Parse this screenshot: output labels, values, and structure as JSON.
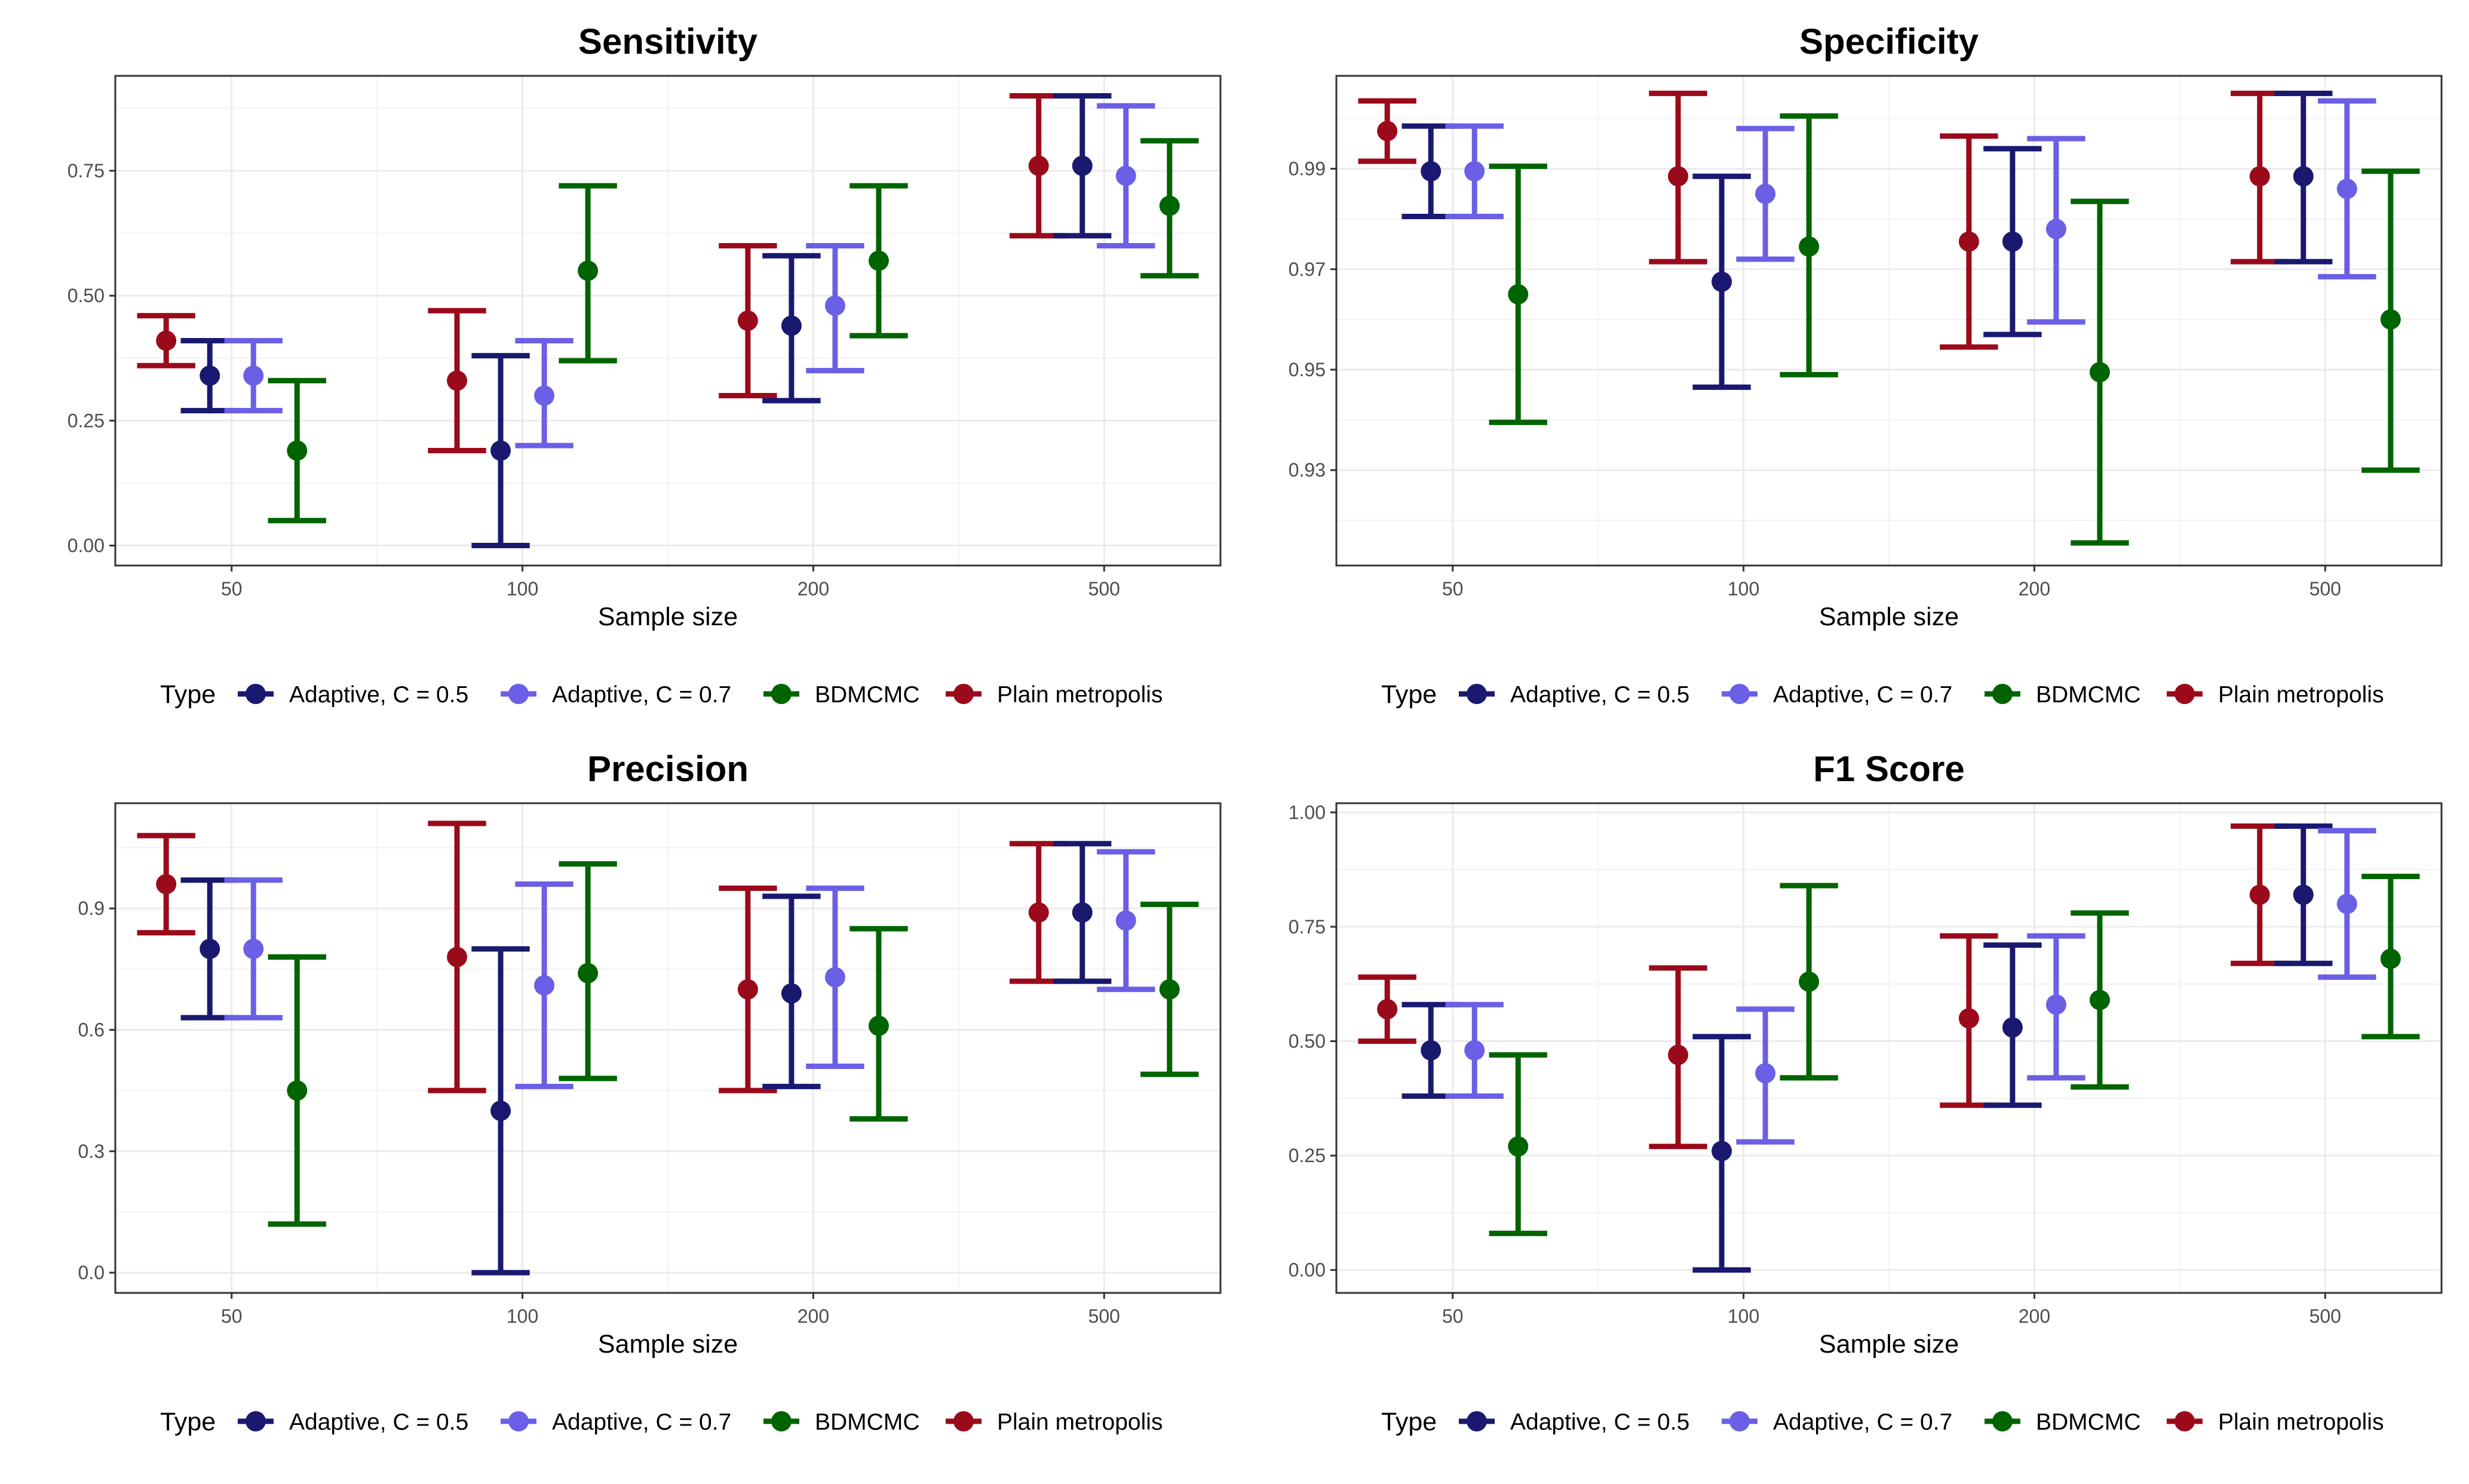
{
  "colors": {
    "Adaptive, C = 0.5": "#191970",
    "Adaptive, C = 0.7": "#6b5fe6",
    "BDMCMC": "#006400",
    "Plain metropolis": "#9b0a1a"
  },
  "legend": {
    "title": "Type",
    "entries": [
      "Adaptive, C = 0.5",
      "Adaptive, C = 0.7",
      "BDMCMC",
      "Plain metropolis"
    ]
  },
  "chart_data": [
    {
      "type": "errorbar",
      "title": "Sensitivity",
      "xlabel": "Sample size",
      "ylabel": "",
      "categories": [
        "50",
        "100",
        "200",
        "500"
      ],
      "ylim": [
        -0.04,
        0.94
      ],
      "yticks": [
        0.0,
        0.25,
        0.5,
        0.75
      ],
      "ytick_labels": [
        "0.00",
        "0.25",
        "0.50",
        "0.75"
      ],
      "legend_position": "bottom",
      "grid": true,
      "series": [
        {
          "name": "Plain metropolis",
          "mean": [
            0.41,
            0.33,
            0.45,
            0.76
          ],
          "lower": [
            0.36,
            0.19,
            0.3,
            0.62
          ],
          "upper": [
            0.46,
            0.47,
            0.6,
            0.9
          ]
        },
        {
          "name": "Adaptive, C = 0.5",
          "mean": [
            0.34,
            0.19,
            0.44,
            0.76
          ],
          "lower": [
            0.27,
            0.0,
            0.29,
            0.62
          ],
          "upper": [
            0.41,
            0.38,
            0.58,
            0.9
          ]
        },
        {
          "name": "Adaptive, C = 0.7",
          "mean": [
            0.34,
            0.3,
            0.48,
            0.74
          ],
          "lower": [
            0.27,
            0.2,
            0.35,
            0.6
          ],
          "upper": [
            0.41,
            0.41,
            0.6,
            0.88
          ]
        },
        {
          "name": "BDMCMC",
          "mean": [
            0.19,
            0.55,
            0.57,
            0.68
          ],
          "lower": [
            0.05,
            0.37,
            0.42,
            0.54
          ],
          "upper": [
            0.33,
            0.72,
            0.72,
            0.81
          ]
        }
      ]
    },
    {
      "type": "errorbar",
      "title": "Specificity",
      "xlabel": "Sample size",
      "ylabel": "",
      "categories": [
        "50",
        "100",
        "200",
        "500"
      ],
      "ylim": [
        0.911,
        1.0085
      ],
      "yticks": [
        0.93,
        0.95,
        0.97,
        0.99
      ],
      "ytick_labels": [
        "0.93",
        "0.95",
        "0.97",
        "0.99"
      ],
      "legend_position": "bottom",
      "grid": true,
      "series": [
        {
          "name": "Plain metropolis",
          "mean": [
            0.9975,
            0.9885,
            0.9755,
            0.9885
          ],
          "lower": [
            0.9915,
            0.9715,
            0.9545,
            0.9715
          ],
          "upper": [
            1.0035,
            1.005,
            0.9965,
            1.005
          ]
        },
        {
          "name": "Adaptive, C = 0.5",
          "mean": [
            0.9895,
            0.9675,
            0.9755,
            0.9885
          ],
          "lower": [
            0.9805,
            0.9465,
            0.957,
            0.9715
          ],
          "upper": [
            0.9985,
            0.9885,
            0.994,
            1.005
          ]
        },
        {
          "name": "Adaptive, C = 0.7",
          "mean": [
            0.9895,
            0.985,
            0.978,
            0.986
          ],
          "lower": [
            0.9805,
            0.972,
            0.9595,
            0.9685
          ],
          "upper": [
            0.9985,
            0.998,
            0.996,
            1.0035
          ]
        },
        {
          "name": "BDMCMC",
          "mean": [
            0.965,
            0.9745,
            0.9495,
            0.96
          ],
          "lower": [
            0.9395,
            0.949,
            0.9155,
            0.93
          ],
          "upper": [
            0.9905,
            1.0005,
            0.9835,
            0.9895
          ]
        }
      ]
    },
    {
      "type": "errorbar",
      "title": "Precision",
      "xlabel": "Sample size",
      "ylabel": "",
      "categories": [
        "50",
        "100",
        "200",
        "500"
      ],
      "ylim": [
        -0.05,
        1.16
      ],
      "yticks": [
        0.0,
        0.3,
        0.6,
        0.9
      ],
      "ytick_labels": [
        "0.0",
        "0.3",
        "0.6",
        "0.9"
      ],
      "legend_position": "bottom",
      "grid": true,
      "series": [
        {
          "name": "Plain metropolis",
          "mean": [
            0.96,
            0.78,
            0.7,
            0.89
          ],
          "lower": [
            0.84,
            0.45,
            0.45,
            0.72
          ],
          "upper": [
            1.08,
            1.11,
            0.95,
            1.06
          ]
        },
        {
          "name": "Adaptive, C = 0.5",
          "mean": [
            0.8,
            0.4,
            0.69,
            0.89
          ],
          "lower": [
            0.63,
            0.0,
            0.46,
            0.72
          ],
          "upper": [
            0.97,
            0.8,
            0.93,
            1.06
          ]
        },
        {
          "name": "Adaptive, C = 0.7",
          "mean": [
            0.8,
            0.71,
            0.73,
            0.87
          ],
          "lower": [
            0.63,
            0.46,
            0.51,
            0.7
          ],
          "upper": [
            0.97,
            0.96,
            0.95,
            1.04
          ]
        },
        {
          "name": "BDMCMC",
          "mean": [
            0.45,
            0.74,
            0.61,
            0.7
          ],
          "lower": [
            0.12,
            0.48,
            0.38,
            0.49
          ],
          "upper": [
            0.78,
            1.01,
            0.85,
            0.91
          ]
        }
      ]
    },
    {
      "type": "errorbar",
      "title": "F1 Score",
      "xlabel": "Sample size",
      "ylabel": "",
      "categories": [
        "50",
        "100",
        "200",
        "500"
      ],
      "ylim": [
        -0.05,
        1.02
      ],
      "yticks": [
        0.0,
        0.25,
        0.5,
        0.75,
        1.0
      ],
      "ytick_labels": [
        "0.00",
        "0.25",
        "0.50",
        "0.75",
        "1.00"
      ],
      "legend_position": "bottom",
      "grid": true,
      "series": [
        {
          "name": "Plain metropolis",
          "mean": [
            0.57,
            0.47,
            0.55,
            0.82
          ],
          "lower": [
            0.5,
            0.27,
            0.36,
            0.67
          ],
          "upper": [
            0.64,
            0.66,
            0.73,
            0.97
          ]
        },
        {
          "name": "Adaptive, C = 0.5",
          "mean": [
            0.48,
            0.26,
            0.53,
            0.82
          ],
          "lower": [
            0.38,
            0.0,
            0.36,
            0.67
          ],
          "upper": [
            0.58,
            0.51,
            0.71,
            0.97
          ]
        },
        {
          "name": "Adaptive, C = 0.7",
          "mean": [
            0.48,
            0.43,
            0.58,
            0.8
          ],
          "lower": [
            0.38,
            0.28,
            0.42,
            0.64
          ],
          "upper": [
            0.58,
            0.57,
            0.73,
            0.96
          ]
        },
        {
          "name": "BDMCMC",
          "mean": [
            0.27,
            0.63,
            0.59,
            0.68
          ],
          "lower": [
            0.08,
            0.42,
            0.4,
            0.51
          ],
          "upper": [
            0.47,
            0.84,
            0.78,
            0.86
          ]
        }
      ]
    }
  ]
}
